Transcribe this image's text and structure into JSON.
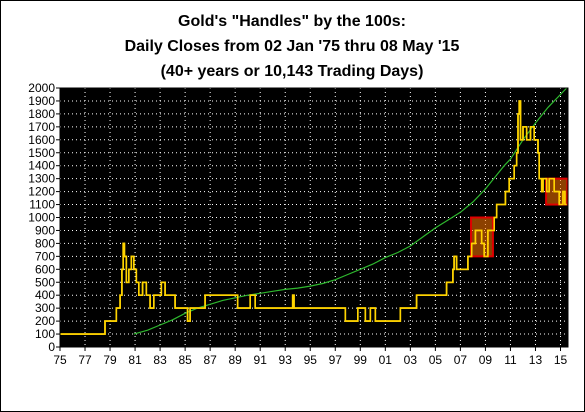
{
  "chart_data": {
    "type": "line",
    "title": [
      "Gold's \"Handles\" by the 100s:",
      "Daily Closes from 02 Jan '75 thru 08 May '15",
      "(40+ years or 10,143 Trading Days)"
    ],
    "xlabel": "",
    "ylabel": "",
    "xlim": [
      1975,
      2015.6
    ],
    "ylim": [
      0,
      2000
    ],
    "x_ticks": [
      "75",
      "77",
      "79",
      "81",
      "83",
      "85",
      "87",
      "89",
      "91",
      "93",
      "95",
      "97",
      "99",
      "01",
      "03",
      "05",
      "07",
      "09",
      "11",
      "13",
      "15"
    ],
    "y_ticks": [
      "0",
      "100",
      "200",
      "300",
      "400",
      "500",
      "600",
      "700",
      "800",
      "900",
      "1000",
      "1100",
      "1200",
      "1300",
      "1400",
      "1500",
      "1600",
      "1700",
      "1800",
      "1900",
      "2000"
    ],
    "grid": true,
    "background_color": "#000000",
    "grid_color": "#ffffff",
    "series": [
      {
        "color": "#ffd400",
        "style": "step",
        "points": [
          [
            1975,
            100
          ],
          [
            1978.6,
            100
          ],
          [
            1978.6,
            200
          ],
          [
            1979.5,
            200
          ],
          [
            1979.5,
            300
          ],
          [
            1979.8,
            400
          ],
          [
            1979.95,
            600
          ],
          [
            1980.05,
            800
          ],
          [
            1980.15,
            700
          ],
          [
            1980.3,
            500
          ],
          [
            1980.5,
            600
          ],
          [
            1980.7,
            700
          ],
          [
            1980.9,
            600
          ],
          [
            1981.1,
            500
          ],
          [
            1981.3,
            400
          ],
          [
            1981.6,
            500
          ],
          [
            1981.9,
            400
          ],
          [
            1982.2,
            300
          ],
          [
            1982.5,
            400
          ],
          [
            1982.8,
            400
          ],
          [
            1983.1,
            500
          ],
          [
            1983.4,
            400
          ],
          [
            1983.8,
            400
          ],
          [
            1984.2,
            300
          ],
          [
            1984.7,
            300
          ],
          [
            1985.0,
            300
          ],
          [
            1985.2,
            200
          ],
          [
            1985.4,
            300
          ],
          [
            1986.0,
            300
          ],
          [
            1986.6,
            400
          ],
          [
            1987.2,
            400
          ],
          [
            1987.6,
            400
          ],
          [
            1988.2,
            400
          ],
          [
            1988.8,
            400
          ],
          [
            1989.2,
            300
          ],
          [
            1989.8,
            300
          ],
          [
            1990.2,
            400
          ],
          [
            1990.6,
            300
          ],
          [
            1991.0,
            300
          ],
          [
            1992.0,
            300
          ],
          [
            1993.5,
            300
          ],
          [
            1993.6,
            400
          ],
          [
            1993.7,
            300
          ],
          [
            1995.0,
            300
          ],
          [
            1996.5,
            300
          ],
          [
            1997.3,
            300
          ],
          [
            1997.8,
            200
          ],
          [
            1998.5,
            200
          ],
          [
            1998.8,
            300
          ],
          [
            1999.4,
            200
          ],
          [
            1999.8,
            300
          ],
          [
            2000.2,
            200
          ],
          [
            2001.0,
            200
          ],
          [
            2002.2,
            300
          ],
          [
            2003.2,
            300
          ],
          [
            2003.5,
            400
          ],
          [
            2004.0,
            400
          ],
          [
            2004.5,
            400
          ],
          [
            2005.5,
            400
          ],
          [
            2005.9,
            500
          ],
          [
            2006.4,
            600
          ],
          [
            2006.5,
            700
          ],
          [
            2006.7,
            600
          ],
          [
            2007.0,
            600
          ],
          [
            2007.6,
            700
          ],
          [
            2007.9,
            800
          ],
          [
            2008.2,
            900
          ],
          [
            2008.7,
            800
          ],
          [
            2008.9,
            700
          ],
          [
            2009.2,
            900
          ],
          [
            2009.7,
            1000
          ],
          [
            2009.9,
            1100
          ],
          [
            2010.3,
            1100
          ],
          [
            2010.6,
            1200
          ],
          [
            2010.9,
            1300
          ],
          [
            2011.3,
            1400
          ],
          [
            2011.5,
            1500
          ],
          [
            2011.6,
            1800
          ],
          [
            2011.7,
            1900
          ],
          [
            2011.8,
            1600
          ],
          [
            2012.0,
            1700
          ],
          [
            2012.3,
            1600
          ],
          [
            2012.6,
            1700
          ],
          [
            2012.9,
            1600
          ],
          [
            2013.2,
            1500
          ],
          [
            2013.3,
            1300
          ],
          [
            2013.5,
            1200
          ],
          [
            2013.6,
            1300
          ],
          [
            2013.9,
            1200
          ],
          [
            2014.1,
            1300
          ],
          [
            2014.5,
            1200
          ],
          [
            2014.8,
            1200
          ],
          [
            2014.9,
            1100
          ],
          [
            2015.2,
            1200
          ],
          [
            2015.35,
            1100
          ],
          [
            2015.5,
            1100
          ]
        ]
      },
      {
        "color": "#2eb82e",
        "style": "line",
        "points": [
          [
            1980.9,
            100
          ],
          [
            1982,
            130
          ],
          [
            1983,
            170
          ],
          [
            1984,
            210
          ],
          [
            1985,
            260
          ],
          [
            1986,
            300
          ],
          [
            1987,
            330
          ],
          [
            1988,
            360
          ],
          [
            1989,
            380
          ],
          [
            1990,
            400
          ],
          [
            1991,
            415
          ],
          [
            1992,
            430
          ],
          [
            1993,
            445
          ],
          [
            1994,
            455
          ],
          [
            1995,
            470
          ],
          [
            1996,
            490
          ],
          [
            1997,
            520
          ],
          [
            1998,
            560
          ],
          [
            1999,
            600
          ],
          [
            2000,
            640
          ],
          [
            2001,
            690
          ],
          [
            2002,
            730
          ],
          [
            2003,
            780
          ],
          [
            2004,
            850
          ],
          [
            2005,
            920
          ],
          [
            2006,
            980
          ],
          [
            2007,
            1040
          ],
          [
            2008,
            1120
          ],
          [
            2009,
            1220
          ],
          [
            2010,
            1340
          ],
          [
            2010.5,
            1400
          ],
          [
            2011,
            1450
          ],
          [
            2012,
            1600
          ],
          [
            2013,
            1730
          ],
          [
            2014,
            1850
          ],
          [
            2015.5,
            2000
          ]
        ]
      }
    ],
    "annotations": [
      {
        "type": "box",
        "x": [
          2007.85,
          2009.6
        ],
        "y": [
          700,
          1000
        ],
        "color": "#e00000",
        "fill": "#ff7700"
      },
      {
        "type": "box",
        "x": [
          2013.85,
          2015.55
        ],
        "y": [
          1100,
          1300
        ],
        "color": "#e00000",
        "fill": "#ff7700"
      }
    ]
  }
}
